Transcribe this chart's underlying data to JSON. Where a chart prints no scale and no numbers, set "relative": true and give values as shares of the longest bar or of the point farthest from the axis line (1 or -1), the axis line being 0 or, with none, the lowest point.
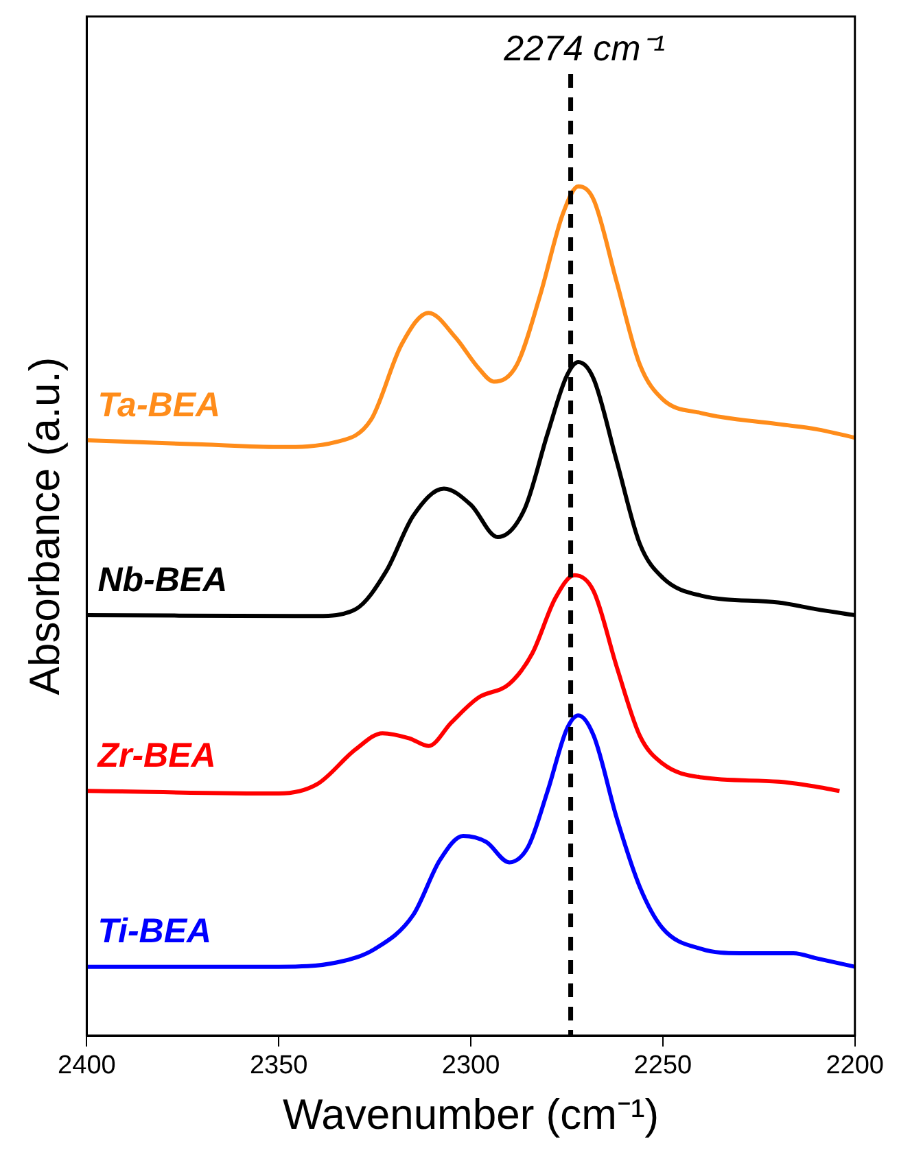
{
  "chart_data": {
    "type": "line",
    "xlabel": "Wavenumber (cm⁻¹)",
    "ylabel": "Absorbance (a.u.)",
    "relative": true,
    "xlim": [
      2400,
      2200
    ],
    "xticks": [
      2400,
      2350,
      2300,
      2250,
      2200
    ],
    "grid": false,
    "legend": false,
    "marker": "none",
    "line_style": "solid",
    "ref_lines": [
      {
        "axis": "x",
        "value": 2274,
        "label": "2274 cm⁻¹",
        "color": "#000000",
        "line_style": "dashed"
      }
    ],
    "series": [
      {
        "name": "Ta-BEA",
        "color": "#ff8c1a",
        "x": [
          2400,
          2370,
          2350,
          2335,
          2326,
          2318,
          2311,
          2304,
          2298,
          2294,
          2288,
          2282,
          2276,
          2272,
          2268,
          2262,
          2256,
          2250,
          2240,
          2220,
          2210,
          2200
        ],
        "values": [
          0.701,
          0.696,
          0.693,
          0.699,
          0.725,
          0.814,
          0.851,
          0.822,
          0.786,
          0.77,
          0.79,
          0.871,
          0.968,
          1.0,
          0.984,
          0.887,
          0.79,
          0.749,
          0.733,
          0.72,
          0.714,
          0.704
        ]
      },
      {
        "name": "Nb-BEA",
        "color": "#000000",
        "x": [
          2400,
          2340,
          2330,
          2322,
          2315,
          2307,
          2300,
          2293,
          2286,
          2280,
          2275,
          2272,
          2268,
          2262,
          2256,
          2250,
          2240,
          2220,
          2210,
          2200
        ],
        "values": [
          0.495,
          0.494,
          0.502,
          0.547,
          0.612,
          0.644,
          0.625,
          0.587,
          0.62,
          0.709,
          0.777,
          0.793,
          0.773,
          0.676,
          0.579,
          0.539,
          0.518,
          0.51,
          0.502,
          0.495
        ]
      },
      {
        "name": "Zr-BEA",
        "color": "#ff0000",
        "x": [
          2400,
          2350,
          2340,
          2330,
          2323,
          2316,
          2311,
          2305,
          2298,
          2290,
          2284,
          2278,
          2273,
          2268,
          2262,
          2256,
          2250,
          2240,
          2220,
          2210,
          2204
        ],
        "values": [
          0.288,
          0.285,
          0.296,
          0.337,
          0.356,
          0.35,
          0.341,
          0.369,
          0.398,
          0.414,
          0.45,
          0.515,
          0.542,
          0.523,
          0.434,
          0.353,
          0.32,
          0.304,
          0.299,
          0.293,
          0.288
        ]
      },
      {
        "name": "Ti-BEA",
        "color": "#0000ff",
        "x": [
          2400,
          2350,
          2335,
          2325,
          2315,
          2308,
          2302,
          2296,
          2290,
          2285,
          2280,
          2275,
          2272,
          2268,
          2262,
          2256,
          2250,
          2240,
          2230,
          2216,
          2210,
          2200
        ],
        "values": [
          0.081,
          0.081,
          0.086,
          0.102,
          0.142,
          0.207,
          0.235,
          0.228,
          0.204,
          0.223,
          0.288,
          0.361,
          0.377,
          0.353,
          0.256,
          0.175,
          0.126,
          0.102,
          0.097,
          0.097,
          0.091,
          0.081
        ]
      }
    ]
  }
}
